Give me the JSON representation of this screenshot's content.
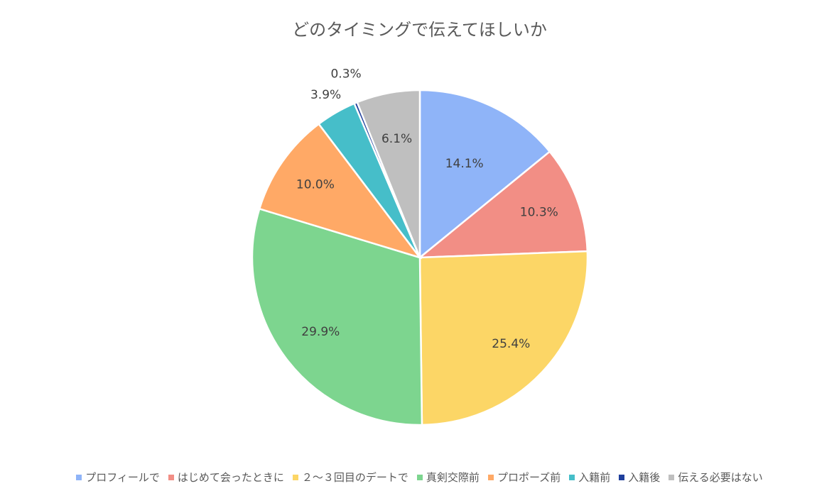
{
  "chart_data": {
    "type": "pie",
    "title": "どのタイミングで伝えてほしいか",
    "legend_position": "bottom",
    "categories": [
      "プロフィールで",
      "はじめて会ったときに",
      "２～３回目のデートで",
      "真剣交際前",
      "プロポーズ前",
      "入籍前",
      "入籍後",
      "伝える必要はない"
    ],
    "values": [
      14.1,
      10.3,
      25.4,
      29.9,
      10.0,
      3.9,
      0.3,
      6.1
    ],
    "data_labels": [
      "14.1%",
      "10.3%",
      "25.4%",
      "29.9%",
      "10.0%",
      "3.9%",
      "0.3%",
      "6.1%"
    ],
    "colors": [
      "#8FB4F8",
      "#F28E85",
      "#FCD666",
      "#7DD58F",
      "#FFA966",
      "#46BEC9",
      "#1F3F9C",
      "#BFBFBF"
    ]
  }
}
